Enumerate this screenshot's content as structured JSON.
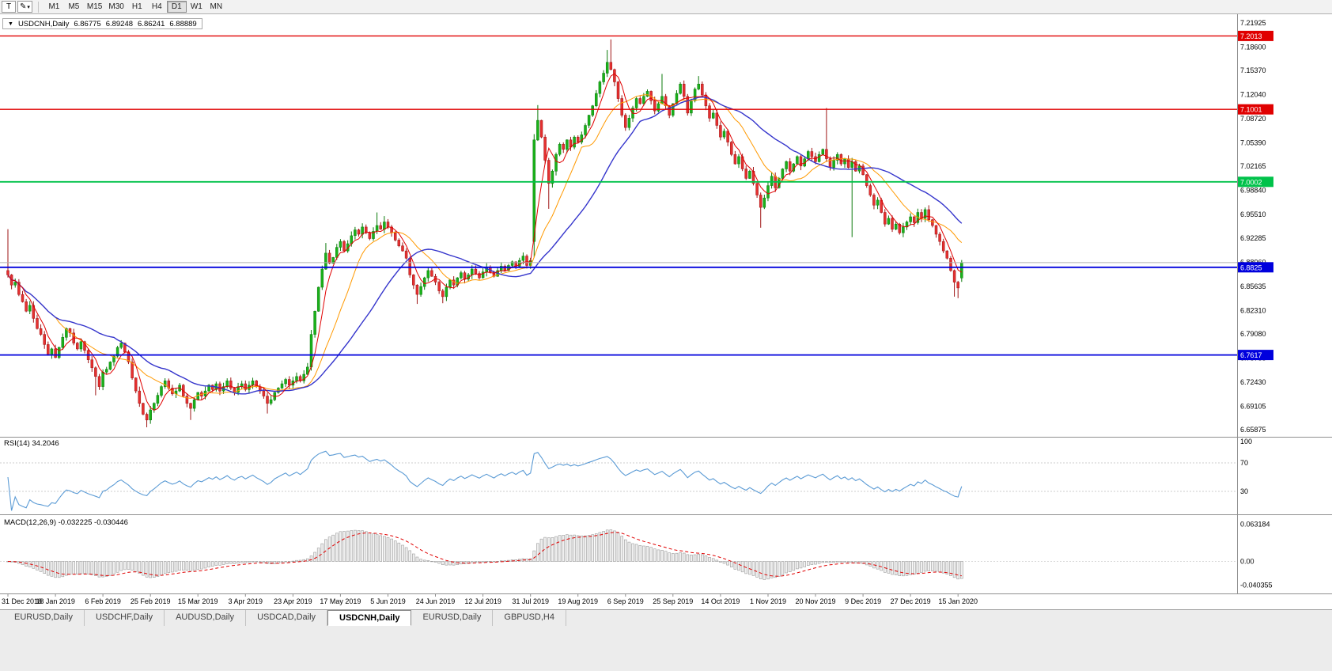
{
  "toolbar": {
    "pointer_tool": "T",
    "draw_icon": "✎",
    "caret_icon": "▾",
    "timeframes": [
      "M1",
      "M5",
      "M15",
      "M30",
      "H1",
      "H4",
      "D1",
      "W1",
      "MN"
    ],
    "active_timeframe": "D1"
  },
  "chart_header": {
    "dropdown_icon": "▼",
    "symbol": "USDCNH,Daily",
    "ohlc": [
      "6.86775",
      "6.89248",
      "6.86241",
      "6.88889"
    ]
  },
  "panes": {
    "rsi_label": "RSI(14) 34.2046",
    "macd_label": "MACD(12,26,9) -0.032225 -0.030446"
  },
  "price_axis_ticks": [
    "7.21925",
    "7.18600",
    "7.15370",
    "7.12040",
    "7.08720",
    "7.05390",
    "7.02165",
    "6.98840",
    "6.95510",
    "6.92285",
    "6.88960",
    "6.85635",
    "6.82310",
    "6.79080",
    "6.75755",
    "6.72430",
    "6.69105",
    "6.65875"
  ],
  "rsi_axis_ticks": [
    {
      "label": "100",
      "value": 100
    },
    {
      "label": "70",
      "value": 70
    },
    {
      "label": "30",
      "value": 30
    }
  ],
  "macd_axis_ticks": [
    {
      "label": "0.063184",
      "value": 0.063184
    },
    {
      "label": "0.00",
      "value": 0
    },
    {
      "label": "-0.040355",
      "value": -0.040355
    }
  ],
  "hlines": [
    {
      "label": "7.2013",
      "value": 7.2013,
      "color": "#e00000",
      "width": 1.4
    },
    {
      "label": "7.1001",
      "value": 7.1001,
      "color": "#e00000",
      "width": 1.4
    },
    {
      "label": "7.0002",
      "value": 7.0002,
      "color": "#00c24a",
      "width": 1.8
    },
    {
      "label": "6.8825",
      "value": 6.8825,
      "color": "#0000dd",
      "width": 1.8
    },
    {
      "label": "6.7617",
      "value": 6.7617,
      "color": "#0000dd",
      "width": 1.8
    }
  ],
  "current_price": {
    "value": 6.88889
  },
  "date_axis": [
    "31 Dec 2018",
    "18 Jan 2019",
    "6 Feb 2019",
    "25 Feb 2019",
    "15 Mar 2019",
    "3 Apr 2019",
    "23 Apr 2019",
    "17 May 2019",
    "5 Jun 2019",
    "24 Jun 2019",
    "12 Jul 2019",
    "31 Jul 2019",
    "19 Aug 2019",
    "6 Sep 2019",
    "25 Sep 2019",
    "14 Oct 2019",
    "1 Nov 2019",
    "20 Nov 2019",
    "9 Dec 2019",
    "27 Dec 2019",
    "15 Jan 2020"
  ],
  "tabs": [
    {
      "label": "EURUSD,Daily",
      "active": false
    },
    {
      "label": "USDCHF,Daily",
      "active": false
    },
    {
      "label": "AUDUSD,Daily",
      "active": false
    },
    {
      "label": "USDCAD,Daily",
      "active": false
    },
    {
      "label": "USDCNH,Daily",
      "active": true
    },
    {
      "label": "EURUSD,Daily",
      "active": false
    },
    {
      "label": "GBPUSD,H4",
      "active": false
    }
  ],
  "colors": {
    "up_fill": "#1ab21a",
    "up_stroke": "#0b7a0b",
    "down_fill": "#e53030",
    "down_stroke": "#9e1515",
    "ma_fast": "#e00000",
    "ma_mid": "#ff9900",
    "ma_slow": "#3535cc",
    "rsi_line": "#5b9bd5",
    "macd_bar_fill": "#efefef",
    "macd_bar_stroke": "#9c9c9c",
    "macd_signal": "#e00000",
    "badge_text": "#ffffff",
    "axis_text": "#000000",
    "separator": "#909090",
    "current_price_line": "#b0b0b0"
  },
  "chart_data": {
    "type": "candlestick",
    "symbol": "USDCNH",
    "timeframe": "Daily",
    "title": "USDCNH,Daily",
    "y_axis": {
      "min": 6.65,
      "max": 7.229
    },
    "first_open": 6.878,
    "closes": [
      6.872,
      6.858,
      6.862,
      6.845,
      6.835,
      6.822,
      6.83,
      6.812,
      6.798,
      6.79,
      6.776,
      6.762,
      6.77,
      6.758,
      6.772,
      6.786,
      6.798,
      6.792,
      6.778,
      6.77,
      6.78,
      6.768,
      6.755,
      6.744,
      6.732,
      6.718,
      6.738,
      6.742,
      6.752,
      6.76,
      6.772,
      6.778,
      6.766,
      6.752,
      6.73,
      6.712,
      6.695,
      6.68,
      6.672,
      6.686,
      6.695,
      6.706,
      6.718,
      6.726,
      6.716,
      6.708,
      6.712,
      6.72,
      6.705,
      6.695,
      6.688,
      6.7,
      6.71,
      6.705,
      6.712,
      6.72,
      6.714,
      6.722,
      6.712,
      6.718,
      6.726,
      6.716,
      6.71,
      6.718,
      6.722,
      6.714,
      6.72,
      6.726,
      6.718,
      6.712,
      6.705,
      6.695,
      6.7,
      6.71,
      6.716,
      6.722,
      6.728,
      6.72,
      6.726,
      6.732,
      6.726,
      6.735,
      6.745,
      6.79,
      6.822,
      6.855,
      6.88,
      6.902,
      6.888,
      6.896,
      6.91,
      6.918,
      6.905,
      6.915,
      6.926,
      6.934,
      6.928,
      6.938,
      6.93,
      6.922,
      6.932,
      6.94,
      6.935,
      6.945,
      6.938,
      6.93,
      6.92,
      6.912,
      6.905,
      6.895,
      6.872,
      6.858,
      6.845,
      6.856,
      6.868,
      6.878,
      6.87,
      6.862,
      6.85,
      6.842,
      6.855,
      6.865,
      6.858,
      6.868,
      6.875,
      6.866,
      6.872,
      6.88,
      6.874,
      6.868,
      6.876,
      6.882,
      6.876,
      6.87,
      6.878,
      6.884,
      6.878,
      6.885,
      6.89,
      6.884,
      6.892,
      6.898,
      6.885,
      6.892,
      7.058,
      7.085,
      7.062,
      7.03,
      6.998,
      7.015,
      7.038,
      7.052,
      7.045,
      7.058,
      7.048,
      7.062,
      7.055,
      7.065,
      7.078,
      7.092,
      7.105,
      7.122,
      7.138,
      7.15,
      7.165,
      7.155,
      7.138,
      7.115,
      7.092,
      7.075,
      7.088,
      7.102,
      7.115,
      7.108,
      7.118,
      7.125,
      7.112,
      7.098,
      7.108,
      7.118,
      7.105,
      7.092,
      7.108,
      7.122,
      7.135,
      7.118,
      7.095,
      7.112,
      7.128,
      7.135,
      7.12,
      7.105,
      7.088,
      7.095,
      7.078,
      7.062,
      7.07,
      7.055,
      7.038,
      7.025,
      7.035,
      7.018,
      7.005,
      7.015,
      6.998,
      6.982,
      6.965,
      6.978,
      6.995,
      7.008,
      6.992,
      7.005,
      7.018,
      7.028,
      7.015,
      7.025,
      7.035,
      7.022,
      7.032,
      7.042,
      7.035,
      7.028,
      7.038,
      7.045,
      7.032,
      7.02,
      7.03,
      7.038,
      7.025,
      7.032,
      7.02,
      7.028,
      7.015,
      7.022,
      7.01,
      6.995,
      6.982,
      6.968,
      6.975,
      6.958,
      6.942,
      6.95,
      6.935,
      6.942,
      6.93,
      6.938,
      6.945,
      6.952,
      6.944,
      6.958,
      6.95,
      6.962,
      6.948,
      6.94,
      6.928,
      6.918,
      6.905,
      6.895,
      6.878,
      6.862,
      6.854,
      6.88889
    ],
    "open_overrides": {
      "144": 6.918
    },
    "wick_overrides": {
      "0": [
        6.935,
        null
      ],
      "24": [
        null,
        6.706
      ],
      "38": [
        null,
        6.662
      ],
      "50": [
        null,
        6.672
      ],
      "71": [
        null,
        6.681
      ],
      "87": [
        6.916,
        null
      ],
      "101": [
        6.958,
        null
      ],
      "103": [
        6.953,
        null
      ],
      "112": [
        null,
        6.832
      ],
      "119": [
        null,
        6.833
      ],
      "144": [
        7.066,
        6.896
      ],
      "145": [
        7.106,
        null
      ],
      "148": [
        null,
        6.963
      ],
      "164": [
        7.182,
        null
      ],
      "165": [
        7.1965,
        null
      ],
      "179": [
        7.149,
        null
      ],
      "189": [
        7.146,
        null
      ],
      "206": [
        null,
        6.937
      ],
      "224": [
        7.102,
        null
      ],
      "231": [
        null,
        6.924
      ],
      "259": [
        null,
        6.842
      ],
      "260": [
        null,
        6.84
      ]
    },
    "last_candle": {
      "o": 6.86775,
      "h": 6.89248,
      "l": 6.86241,
      "c": 6.88889
    },
    "overlays": [
      {
        "name": "ma-fast",
        "type": "sma",
        "period": 5
      },
      {
        "name": "ma-mid",
        "type": "sma",
        "period": 14
      },
      {
        "name": "ma-slow",
        "type": "sma",
        "period": 30
      }
    ],
    "rsi": {
      "period": 14,
      "current": 34.2046,
      "levels": [
        70,
        30
      ],
      "range": [
        0,
        100
      ]
    },
    "macd": {
      "fast": 12,
      "slow": 26,
      "signal_period": 9,
      "current_main": -0.032225,
      "current_signal": -0.030446,
      "range": [
        -0.052,
        0.075
      ]
    }
  }
}
